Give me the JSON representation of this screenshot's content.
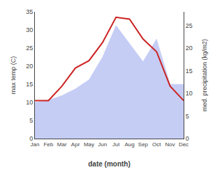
{
  "chart_data": {
    "type": "line",
    "categories": [
      "Jan",
      "Feb",
      "Mar",
      "Apr",
      "May",
      "Jun",
      "Jul",
      "Aug",
      "Sep",
      "Oct",
      "Nov",
      "Dec"
    ],
    "xlabel": "date (month)",
    "ylabel": "max temp (C)",
    "y2label": "med. precipitation (kg/m2)",
    "series": [
      {
        "type": "area",
        "axis": "y2",
        "color": "#c5cdf5",
        "values": [
          8.0,
          8.5,
          9.5,
          11.0,
          13.0,
          18.0,
          25.0,
          21.0,
          17.0,
          22.0,
          12.0,
          12.0
        ]
      },
      {
        "type": "line",
        "color": "#cc2222",
        "values": [
          10.5,
          10.5,
          14.5,
          19.5,
          21.5,
          26.5,
          33.5,
          33.0,
          27.5,
          24.0,
          14.5,
          10.5
        ]
      }
    ],
    "ylim": [
      0,
      35
    ],
    "yticks": [
      0,
      5,
      10,
      15,
      20,
      25,
      30,
      35
    ],
    "y2lim": [
      0,
      28
    ],
    "y2ticks": [
      0,
      5,
      10,
      15,
      20,
      25
    ],
    "grid": false
  }
}
